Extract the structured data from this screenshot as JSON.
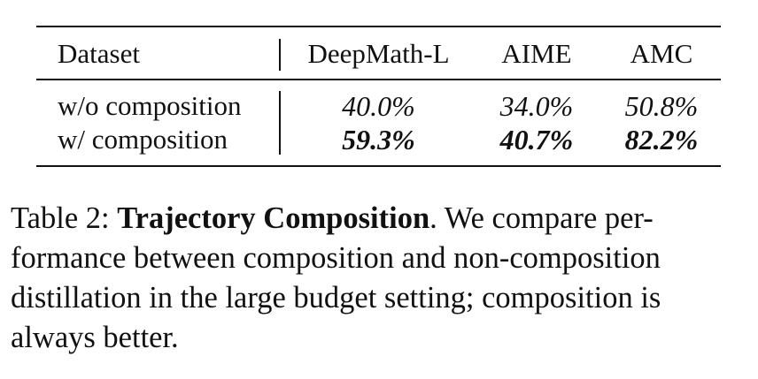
{
  "table": {
    "headers": [
      "Dataset",
      "DeepMath-L",
      "AIME",
      "AMC"
    ],
    "rows": [
      {
        "label": "w/o composition",
        "values": [
          "40.0%",
          "34.0%",
          "50.8%"
        ],
        "bold": false
      },
      {
        "label": "w/ composition",
        "values": [
          "59.3%",
          "40.7%",
          "82.2%"
        ],
        "bold": true
      }
    ]
  },
  "caption": {
    "prefix": "Table 2: ",
    "title": "Trajectory Composition",
    "line1_rest": ".  We compare per-",
    "line2": "formance between composition and non-composition",
    "line3": "distillation in the large budget setting; composition is",
    "line4": "always better."
  }
}
